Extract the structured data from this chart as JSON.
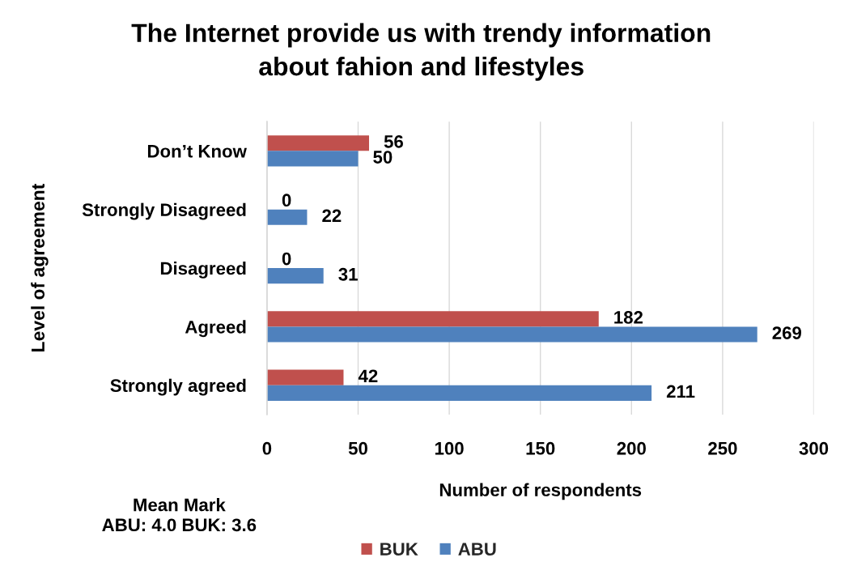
{
  "chart_data": {
    "type": "bar",
    "orientation": "horizontal",
    "title": "The Internet provide us with trendy information\nabout fahion and lifestyles",
    "xlabel": "Number of respondents",
    "ylabel": "Level of agreement",
    "categories": [
      "Don’t Know",
      "Strongly Disagreed",
      "Disagreed",
      "Agreed",
      "Strongly agreed"
    ],
    "series": [
      {
        "name": "BUK",
        "color": "#c0504d",
        "values": [
          56,
          0,
          0,
          182,
          42
        ]
      },
      {
        "name": "ABU",
        "color": "#4f81bd",
        "values": [
          50,
          22,
          31,
          269,
          211
        ]
      }
    ],
    "xlim": [
      0,
      300
    ],
    "xticks": [
      0,
      50,
      100,
      150,
      200,
      250,
      300
    ],
    "grid": "x",
    "legend": "bottom",
    "data_labels": true,
    "annotations": [
      "Mean Mark\nABU: 4.0 BUK: 3.6"
    ]
  }
}
